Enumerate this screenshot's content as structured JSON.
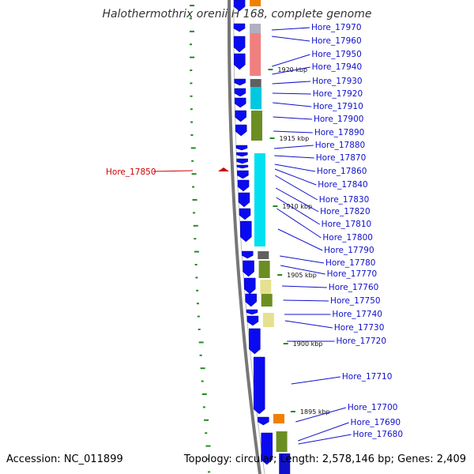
{
  "title": "Halothermothrix orenii H 168, complete genome",
  "accession": "Accession: NC_011899",
  "summary": "Topology: circular; Length: 2,578,146 bp; Genes: 2,409",
  "colors": {
    "gene_label": "#1010cc",
    "highlight": "#cc0000",
    "arrow": "#0a0af0",
    "backbone": "#777777",
    "tick": "#228b22"
  },
  "kbp_labels": [
    "1920 kbp",
    "1915 kbp",
    "1910 kbp",
    "1905 kbp",
    "1900 kbp",
    "1895 kbp"
  ],
  "highlight_gene": "Hore_17850",
  "genes": [
    "Hore_17970",
    "Hore_17960",
    "Hore_17950",
    "Hore_17940",
    "Hore_17930",
    "Hore_17920",
    "Hore_17910",
    "Hore_17900",
    "Hore_17890",
    "Hore_17880",
    "Hore_17870",
    "Hore_17860",
    "Hore_17840",
    "Hore_17830",
    "Hore_17820",
    "Hore_17810",
    "Hore_17800",
    "Hore_17790",
    "Hore_17780",
    "Hore_17770",
    "Hore_17760",
    "Hore_17750",
    "Hore_17740",
    "Hore_17730",
    "Hore_17720",
    "Hore_17710",
    "Hore_17700",
    "Hore_17690",
    "Hore_17680"
  ]
}
